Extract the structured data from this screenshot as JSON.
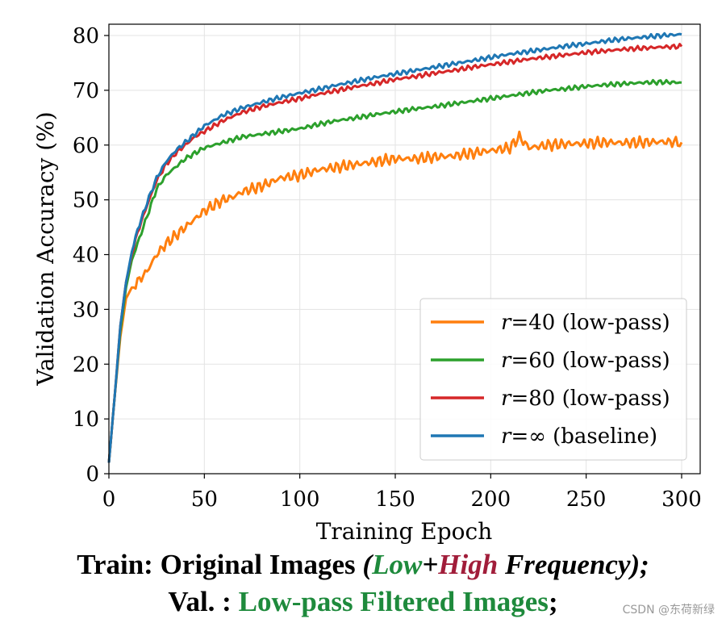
{
  "chart_data": {
    "type": "line",
    "xlabel": "Training Epoch",
    "ylabel": "Validation Accuracy (%)",
    "xlim": [
      0,
      300
    ],
    "ylim": [
      0,
      82
    ],
    "xticks": [
      "0",
      "50",
      "100",
      "150",
      "200",
      "250",
      "300"
    ],
    "yticks": [
      "0",
      "10",
      "20",
      "30",
      "40",
      "50",
      "60",
      "70",
      "80"
    ],
    "grid": true,
    "legend_position": "lower-right",
    "series": [
      {
        "name": "r=40 (low-pass)",
        "label_var": "r",
        "label_rest": "=40 (low-pass)",
        "color": "#ff7f0e",
        "x": [
          0,
          3,
          6,
          9,
          12,
          15,
          20,
          25,
          30,
          35,
          40,
          45,
          50,
          55,
          60,
          65,
          70,
          75,
          80,
          90,
          100,
          110,
          120,
          130,
          140,
          150,
          160,
          170,
          180,
          190,
          200,
          210,
          215,
          220,
          230,
          240,
          250,
          260,
          270,
          280,
          290,
          300
        ],
        "y": [
          2,
          14,
          25,
          32,
          34,
          35,
          37,
          40,
          42,
          43.5,
          45,
          46.5,
          48,
          49,
          50,
          50.5,
          51.5,
          52,
          52.5,
          54,
          54.5,
          55.5,
          56,
          56.5,
          57,
          57.5,
          57.5,
          57.8,
          58,
          58.5,
          59,
          59.5,
          61.5,
          59.5,
          60,
          60.2,
          60.3,
          60.5,
          60.4,
          60.5,
          60.6,
          60.5
        ]
      },
      {
        "name": "r=60 (low-pass)",
        "label_var": "r",
        "label_rest": "=60 (low-pass)",
        "color": "#2ca02c",
        "x": [
          0,
          3,
          6,
          9,
          12,
          15,
          20,
          25,
          30,
          35,
          40,
          45,
          50,
          55,
          60,
          70,
          80,
          90,
          100,
          110,
          120,
          130,
          140,
          150,
          160,
          170,
          180,
          190,
          200,
          210,
          220,
          230,
          240,
          250,
          260,
          270,
          280,
          290,
          300
        ],
        "y": [
          2,
          14,
          26,
          34,
          39,
          42,
          47,
          52,
          54.5,
          56,
          57.5,
          58.5,
          59.5,
          60,
          60.5,
          61.5,
          62,
          62.5,
          63,
          63.8,
          64.5,
          65,
          65.6,
          66.1,
          66.6,
          67,
          67.5,
          68,
          68.5,
          69,
          69.5,
          70,
          70.3,
          70.7,
          71,
          71.2,
          71.4,
          71.5,
          71.4
        ]
      },
      {
        "name": "r=80 (low-pass)",
        "label_var": "r",
        "label_rest": "=80 (low-pass)",
        "color": "#d62728",
        "x": [
          0,
          3,
          6,
          9,
          12,
          15,
          20,
          25,
          30,
          35,
          40,
          45,
          50,
          55,
          60,
          70,
          80,
          90,
          100,
          110,
          120,
          130,
          140,
          150,
          160,
          170,
          180,
          190,
          200,
          210,
          220,
          230,
          240,
          250,
          260,
          270,
          280,
          290,
          300
        ],
        "y": [
          2,
          14,
          27,
          35,
          40,
          44,
          49,
          53.5,
          56.5,
          58.5,
          60,
          61.5,
          62.5,
          63.5,
          64.5,
          66,
          67,
          67.8,
          68.5,
          69.3,
          70,
          70.7,
          71.3,
          72,
          72.5,
          73.1,
          73.6,
          74.2,
          74.7,
          75.2,
          75.7,
          76.1,
          76.5,
          76.9,
          77.2,
          77.5,
          77.7,
          77.9,
          78
        ]
      },
      {
        "name": "r=∞ (baseline)",
        "label_var": "r",
        "label_rest": "=∞ (baseline)",
        "color": "#1f77b4",
        "x": [
          0,
          3,
          6,
          9,
          12,
          15,
          20,
          25,
          30,
          35,
          40,
          45,
          50,
          55,
          60,
          70,
          80,
          90,
          100,
          110,
          120,
          130,
          140,
          150,
          160,
          170,
          180,
          190,
          200,
          210,
          220,
          230,
          240,
          250,
          260,
          270,
          280,
          290,
          300
        ],
        "y": [
          2,
          14,
          27,
          35,
          40.5,
          44.5,
          49.5,
          54,
          57,
          59,
          60.5,
          62,
          63.5,
          64.5,
          65.5,
          66.8,
          67.8,
          68.7,
          69.5,
          70.2,
          71,
          71.7,
          72.4,
          73,
          73.6,
          74.2,
          74.8,
          75.4,
          76,
          76.6,
          77.1,
          77.6,
          78.1,
          78.5,
          79,
          79.4,
          79.7,
          80,
          80.2
        ]
      }
    ]
  },
  "caption": {
    "line1_a": "Train: Original Images ",
    "line1_b": "(",
    "line1_low": "Low",
    "line1_plus": "+",
    "line1_high": "High",
    "line1_c": " Frequency);",
    "line2_a": "Val. : ",
    "line2_b": "Low-pass Filtered Images",
    "line2_c": ";"
  },
  "watermark": "CSDN @东荷新绿"
}
